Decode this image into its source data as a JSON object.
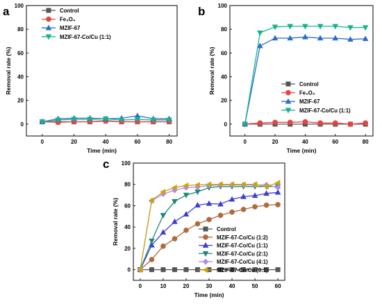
{
  "figure": {
    "panels": [
      {
        "letter": "a"
      },
      {
        "letter": "b"
      },
      {
        "letter": "c"
      }
    ]
  },
  "chart_data": [
    {
      "panel": "a",
      "type": "line",
      "xlabel": "Time (min)",
      "ylabel": "Removal rate (%)",
      "xlim": [
        -10,
        85
      ],
      "ylim": [
        -10,
        100
      ],
      "xticks": [
        0,
        20,
        40,
        60,
        80
      ],
      "yticks": [
        0,
        20,
        40,
        60,
        80,
        100
      ],
      "legend_position": "top-left",
      "x": [
        0,
        10,
        20,
        30,
        40,
        50,
        60,
        70,
        80
      ],
      "series": [
        {
          "name": "Control",
          "marker": "square",
          "color": "#555555",
          "values": [
            2,
            2,
            2,
            2,
            3,
            2,
            2,
            2,
            2
          ]
        },
        {
          "name": "Fe₃O₄",
          "marker": "circle",
          "color": "#e8433f",
          "values": [
            2,
            1.5,
            2,
            2,
            2.5,
            2,
            2,
            2,
            2
          ]
        },
        {
          "name": "MZIF-67",
          "marker": "triangle-up",
          "color": "#2d6bd1",
          "values": [
            2,
            4.5,
            5,
            5,
            4.5,
            5,
            7,
            4.5,
            4.5
          ]
        },
        {
          "name": "MZIF-67-Co/Cu (1:1)",
          "marker": "triangle-down",
          "color": "#13b391",
          "values": [
            2,
            3.5,
            4,
            4,
            4.5,
            3.5,
            4,
            3.5,
            3.5
          ]
        }
      ]
    },
    {
      "panel": "b",
      "type": "line",
      "xlabel": "Time (min)",
      "ylabel": "Removal rate (%)",
      "xlim": [
        -10,
        85
      ],
      "ylim": [
        -10,
        100
      ],
      "xticks": [
        0,
        20,
        40,
        60,
        80
      ],
      "yticks": [
        0,
        20,
        40,
        60,
        80,
        100
      ],
      "legend_position": "bottom-right",
      "x": [
        0,
        10,
        20,
        30,
        40,
        50,
        60,
        70,
        80
      ],
      "series": [
        {
          "name": "Control",
          "marker": "square",
          "color": "#555555",
          "values": [
            0,
            0,
            0,
            0,
            0,
            0,
            0,
            0,
            0
          ]
        },
        {
          "name": "Fe₃O₄",
          "marker": "circle",
          "color": "#e8433f",
          "values": [
            0,
            1,
            1.5,
            1.5,
            2,
            1,
            1,
            0,
            1
          ]
        },
        {
          "name": "MZIF-67",
          "marker": "triangle-up",
          "color": "#2d6bd1",
          "values": [
            0,
            66,
            72.5,
            72.5,
            73.5,
            72.5,
            72.5,
            71.5,
            72
          ]
        },
        {
          "name": "MZIF-67-Co/Cu (1:1)",
          "marker": "triangle-down",
          "color": "#13b391",
          "values": [
            0,
            77,
            82,
            82.5,
            82.5,
            82.5,
            82.5,
            81.5,
            81.5
          ]
        }
      ]
    },
    {
      "panel": "c",
      "type": "line",
      "xlabel": "Time (min)",
      "ylabel": "Removal rate (%)",
      "xlim": [
        -3,
        63
      ],
      "ylim": [
        -10,
        100
      ],
      "xticks": [
        0,
        10,
        20,
        30,
        40,
        50,
        60
      ],
      "yticks": [
        0,
        20,
        40,
        60,
        80,
        100
      ],
      "legend_position": "bottom-right",
      "x": [
        0,
        5,
        10,
        15,
        20,
        25,
        30,
        35,
        40,
        45,
        50,
        55,
        60
      ],
      "series": [
        {
          "name": "Control",
          "marker": "square",
          "color": "#555555",
          "values": [
            0,
            0,
            0,
            0,
            0,
            0,
            0,
            0,
            0,
            0,
            0,
            0,
            0
          ]
        },
        {
          "name": "MZIF-67-Co/Cu (1:2)",
          "marker": "circle",
          "color": "#b06a3b",
          "values": [
            0,
            9.5,
            22,
            29,
            37,
            43,
            47,
            51,
            54,
            56.5,
            59,
            60.5,
            61
          ]
        },
        {
          "name": "MZIF-67-Co/Cu (1:1)",
          "marker": "triangle-up",
          "color": "#3a3fd0",
          "values": [
            0,
            23,
            35,
            45,
            52,
            60.5,
            62,
            61.5,
            66,
            68.5,
            69.5,
            71.5,
            72.5
          ]
        },
        {
          "name": "MZIF-67-Co/Cu (2:1)",
          "marker": "triangle-down",
          "color": "#1d8a78",
          "values": [
            0,
            27,
            51,
            64,
            70,
            73,
            77,
            78,
            78,
            78,
            78,
            78,
            78
          ]
        },
        {
          "name": "MZIF-67-Co/Cu (4:1)",
          "marker": "diamond",
          "color": "#b08ae8",
          "values": [
            0,
            64.5,
            71,
            74.5,
            77,
            77.5,
            79,
            79.5,
            79.5,
            79.5,
            79.5,
            79.5,
            77
          ]
        },
        {
          "name": "MZIF-67-Co/Cu (8:1)",
          "marker": "triangle-left",
          "color": "#c9a412",
          "values": [
            0,
            65,
            73,
            77,
            79,
            79.5,
            80,
            80,
            80,
            80,
            80,
            78,
            81.5
          ]
        }
      ]
    }
  ]
}
